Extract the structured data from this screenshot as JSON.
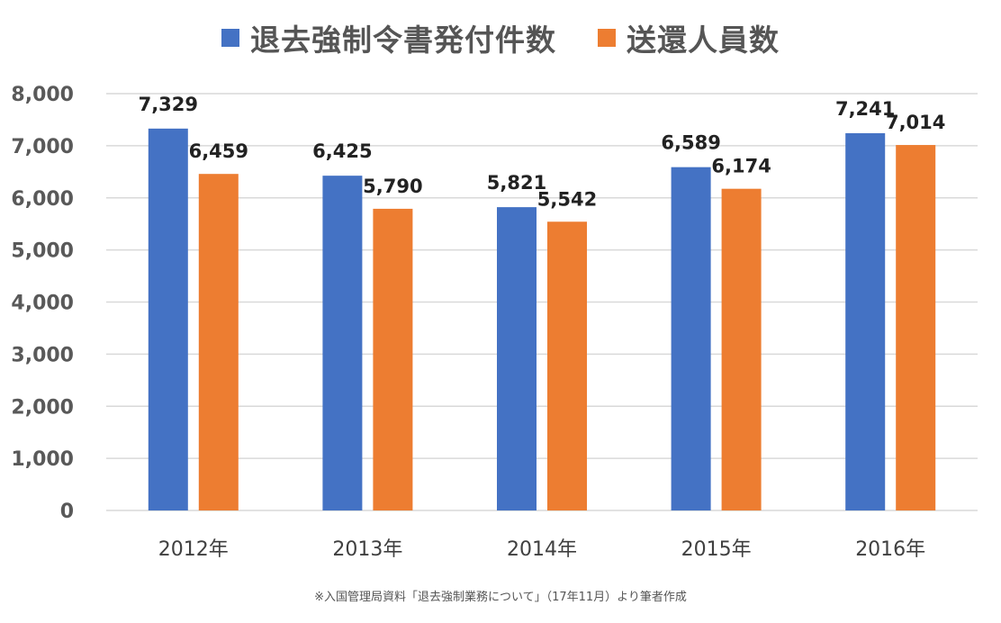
{
  "legend_position": "top",
  "colors": {
    "series1": "#4472c4",
    "series2": "#ed7d31",
    "grid": "#d9d9d9",
    "text": "#595959"
  },
  "source_note": "※入国管理局資料「退去強制業務について」（17年11月）より筆者作成",
  "chart_data": {
    "type": "bar",
    "categories": [
      "2012年",
      "2013年",
      "2014年",
      "2015年",
      "2016年"
    ],
    "series": [
      {
        "name": "退去強制令書発付件数",
        "values": [
          7329,
          6425,
          5821,
          6589,
          7241
        ]
      },
      {
        "name": "送還人員数",
        "values": [
          6459,
          5790,
          5542,
          6174,
          7014
        ]
      }
    ],
    "data_labels": [
      [
        "7,329",
        "6,425",
        "5,821",
        "6,589",
        "7,241"
      ],
      [
        "6,459",
        "5,790",
        "5,542",
        "6,174",
        "7,014"
      ]
    ],
    "y_ticks": [
      "0",
      "1,000",
      "2,000",
      "3,000",
      "4,000",
      "5,000",
      "6,000",
      "7,000",
      "8,000"
    ],
    "ylim": [
      0,
      8000
    ],
    "grid": true,
    "title": "",
    "xlabel": "",
    "ylabel": ""
  }
}
